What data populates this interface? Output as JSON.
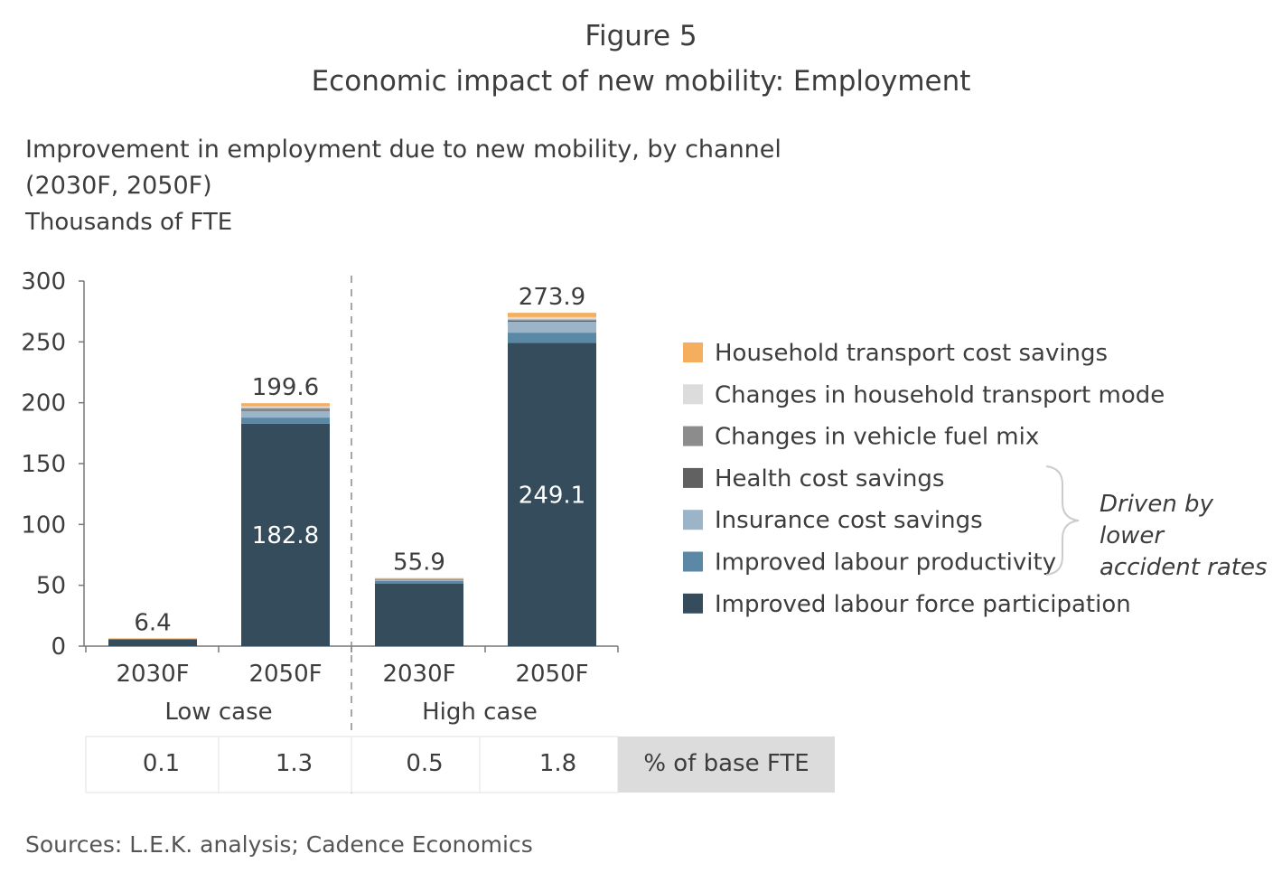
{
  "figure_label": "Figure 5",
  "title": "Economic impact of new mobility: Employment",
  "subtitle_line1": "Improvement in employment due to new mobility, by channel",
  "subtitle_line2": "(2030F, 2050F)",
  "units": "Thousands of FTE",
  "source": "Sources: L.E.K. analysis; Cadence Economics",
  "chart_data": {
    "type": "bar",
    "stacked": true,
    "ylim": [
      0,
      300
    ],
    "yticks": [
      0,
      50,
      100,
      150,
      200,
      250,
      300
    ],
    "categories": [
      "2030F",
      "2050F",
      "2030F",
      "2050F"
    ],
    "groups": [
      {
        "label": "Low case",
        "categories": [
          0,
          1
        ]
      },
      {
        "label": "High case",
        "categories": [
          2,
          3
        ]
      }
    ],
    "series": [
      {
        "name": "Improved labour force participation",
        "color": "#354c5c",
        "values": [
          5.5,
          182.8,
          51.5,
          249.1
        ]
      },
      {
        "name": "Improved labour productivity",
        "color": "#5b88a5",
        "values": [
          0.4,
          5.0,
          2.0,
          8.5
        ]
      },
      {
        "name": "Insurance cost savings",
        "color": "#9bb4c8",
        "values": [
          0.3,
          5.5,
          1.5,
          9.0
        ]
      },
      {
        "name": "Health cost savings",
        "color": "#616161",
        "values": [
          0.05,
          0.8,
          0.2,
          0.8
        ]
      },
      {
        "name": "Changes in vehicle fuel mix",
        "color": "#8c8c8c",
        "values": [
          0.05,
          1.5,
          0.2,
          1.0
        ]
      },
      {
        "name": "Changes in household transport mode",
        "color": "#dcdcdc",
        "values": [
          0.05,
          1.5,
          0.2,
          2.0
        ]
      },
      {
        "name": "Household transport cost savings",
        "color": "#f5ad5e",
        "values": [
          0.05,
          2.5,
          0.3,
          3.5
        ]
      }
    ],
    "totals": [
      "6.4",
      "199.6",
      "55.9",
      "273.9"
    ],
    "inner_labels": [
      "",
      "182.8",
      "",
      "249.1"
    ],
    "legend_order": [
      6,
      5,
      4,
      3,
      2,
      1,
      0
    ],
    "legend_placement": "right",
    "annotation": [
      "Driven by",
      "lower",
      "accident rates"
    ],
    "pct_of_base": [
      "0.1",
      "1.3",
      "0.5",
      "1.8"
    ],
    "pct_label": "% of base FTE"
  }
}
